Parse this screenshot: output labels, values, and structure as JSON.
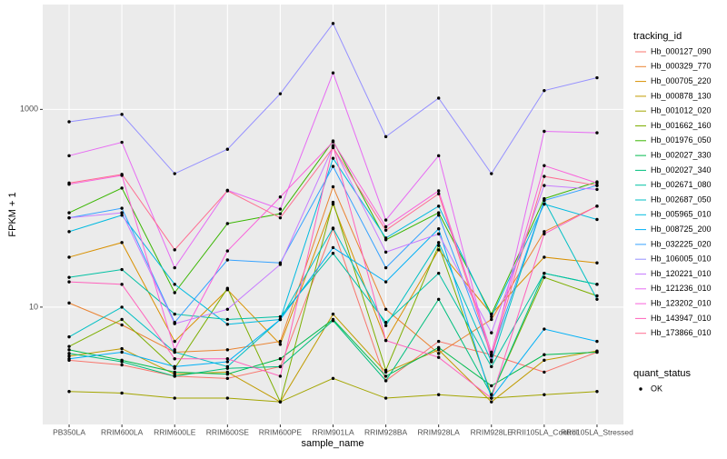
{
  "chart_data": {
    "type": "line",
    "x_label": "sample_name",
    "y_label": "FPKM + 1",
    "log_y": true,
    "grid": true,
    "categories": [
      "PB350LA",
      "RRIM600LA",
      "RRIM600LE",
      "RRIM600SE",
      "RRIM600PE",
      "RRIM901LA",
      "RRIM928BA",
      "RRIM928LA",
      "RRIM928LE",
      "RRII105LA_Control",
      "RRII105LA_Stressed"
    ],
    "ylim": [
      0.65,
      11500
    ],
    "yticks": [
      10,
      1000
    ],
    "legend_title": "tracking_id",
    "legend_position": "right",
    "point_legend_title": "quant_status",
    "point_legend_label": "OK",
    "point_color": "#000000",
    "series": [
      {
        "name": "Hb_000127_090",
        "color": "#F8766D",
        "values": [
          2.9,
          2.6,
          2.0,
          1.9,
          2.5,
          62,
          1.8,
          4.5,
          3.3,
          2.2,
          3.5
        ]
      },
      {
        "name": "Hb_000329_770",
        "color": "#EA8331",
        "values": [
          11,
          6.6,
          3.5,
          3.7,
          4.5,
          165,
          9.5,
          3.4,
          7.5,
          58,
          105
        ]
      },
      {
        "name": "Hb_000705_220",
        "color": "#D89000",
        "values": [
          32,
          45,
          4.5,
          15,
          4.2,
          110,
          4.6,
          38,
          8.5,
          32,
          28
        ]
      },
      {
        "name": "Hb_000878_130",
        "color": "#C09B00",
        "values": [
          3.2,
          3.8,
          2.1,
          2.2,
          1.1,
          8.5,
          2.2,
          3.7,
          1.1,
          2.9,
          3.6
        ]
      },
      {
        "name": "Hb_001012_020",
        "color": "#A3A500",
        "values": [
          1.4,
          1.35,
          1.2,
          1.2,
          1.1,
          1.9,
          1.2,
          1.3,
          1.2,
          1.3,
          1.4
        ]
      },
      {
        "name": "Hb_001662_160",
        "color": "#7CAE00",
        "values": [
          4.0,
          7.5,
          2.4,
          15.5,
          1.1,
          115,
          2.3,
          42,
          1.3,
          20,
          13
        ]
      },
      {
        "name": "Hb_001976_050",
        "color": "#39B600",
        "values": [
          90,
          160,
          14,
          70,
          88,
          480,
          48,
          90,
          8.5,
          125,
          185
        ]
      },
      {
        "name": "Hb_002027_330",
        "color": "#00BB4E",
        "values": [
          3.7,
          2.9,
          2.2,
          2.1,
          3.0,
          7.5,
          2.0,
          3.9,
          1.6,
          3.3,
          3.5
        ]
      },
      {
        "name": "Hb_002027_340",
        "color": "#00BF7D",
        "values": [
          3.4,
          2.8,
          2.0,
          2.4,
          2.5,
          7.3,
          1.8,
          12,
          1.3,
          22,
          17
        ]
      },
      {
        "name": "Hb_002671_080",
        "color": "#00C1A3",
        "values": [
          20,
          24,
          8.5,
          7.5,
          8,
          35,
          7,
          22,
          2.5,
          22,
          17
        ]
      },
      {
        "name": "Hb_002687_050",
        "color": "#00BFC4",
        "values": [
          5,
          10,
          3.5,
          2.5,
          7.5,
          63,
          6.5,
          45,
          2.8,
          120,
          12
        ]
      },
      {
        "name": "Hb_005965_010",
        "color": "#00BAE0",
        "values": [
          58,
          85,
          17,
          6.7,
          7.5,
          320,
          50,
          105,
          8,
          110,
          77
        ]
      },
      {
        "name": "Hb_008725_200",
        "color": "#00B0F6",
        "values": [
          3,
          3.5,
          2.5,
          2.8,
          7.5,
          40,
          18,
          62,
          1.2,
          6,
          4.5
        ]
      },
      {
        "name": "Hb_032225_020",
        "color": "#35A2FF",
        "values": [
          80,
          100,
          7,
          30,
          28,
          265,
          25,
          85,
          3.3,
          120,
          170
        ]
      },
      {
        "name": "Hb_106005_010",
        "color": "#9590FF",
        "values": [
          750,
          890,
          224,
          395,
          1440,
          7400,
          530,
          1300,
          224,
          1550,
          2090
        ]
      },
      {
        "name": "Hb_120221_010",
        "color": "#C77CFF",
        "values": [
          80,
          90,
          6.8,
          9.5,
          27,
          420,
          36,
          55,
          5.5,
          170,
          155
        ]
      },
      {
        "name": "Hb_121236_010",
        "color": "#E76BF3",
        "values": [
          340,
          465,
          25,
          152,
          98,
          2340,
          76,
          340,
          2.9,
          600,
          580
        ]
      },
      {
        "name": "Hb_123202_010",
        "color": "#FA62DB",
        "values": [
          175,
          215,
          3.7,
          37,
          130,
          470,
          65,
          150,
          3.5,
          270,
          180
        ]
      },
      {
        "name": "Hb_143947_010",
        "color": "#FF62BC",
        "values": [
          18,
          17,
          3.0,
          3.0,
          2.0,
          430,
          4.6,
          3.1,
          1.2,
          55,
          105
        ]
      },
      {
        "name": "Hb_173866_010",
        "color": "#FF6C91",
        "values": [
          180,
          220,
          38,
          150,
          80,
          410,
          60,
          140,
          3.2,
          210,
          170
        ]
      }
    ]
  }
}
